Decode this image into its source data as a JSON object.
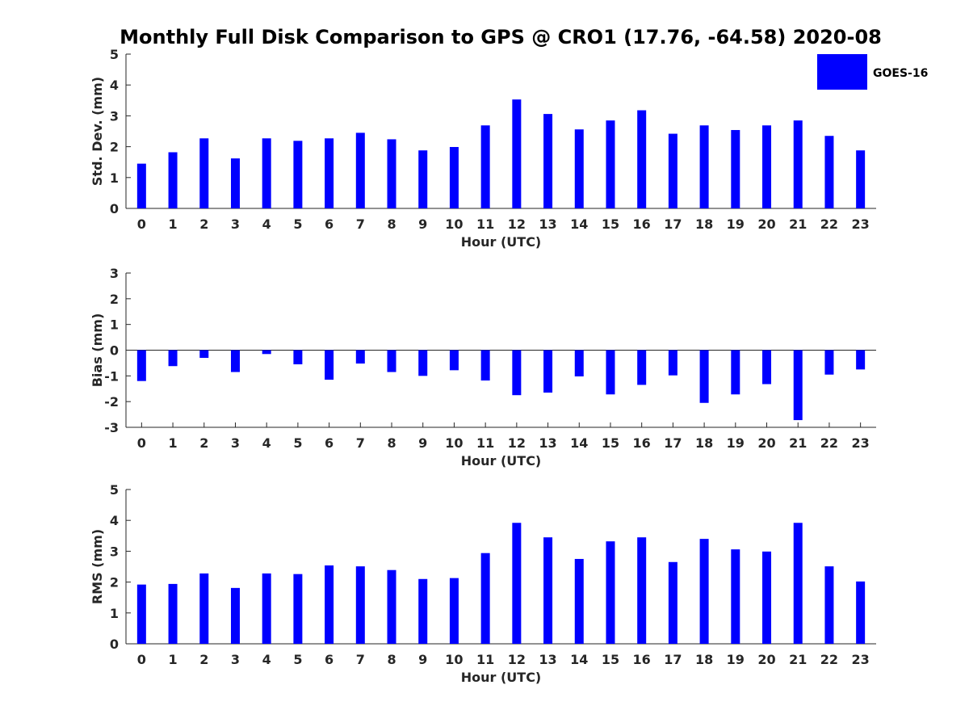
{
  "title": "Monthly Full Disk Comparison to GPS @ CRO1 (17.76, -64.58) 2020-08",
  "legend": {
    "label": "GOES-16",
    "color": "#0000ff",
    "position": "top-right"
  },
  "chart_data": [
    {
      "type": "bar",
      "id": "stddev",
      "xlabel": "Hour (UTC)",
      "ylabel": "Std. Dev. (mm)",
      "ylim": [
        0,
        5
      ],
      "yticks": [
        0,
        1,
        2,
        3,
        4,
        5
      ],
      "categories": [
        "0",
        "1",
        "2",
        "3",
        "4",
        "5",
        "6",
        "7",
        "8",
        "9",
        "10",
        "11",
        "12",
        "13",
        "14",
        "15",
        "16",
        "17",
        "18",
        "19",
        "20",
        "21",
        "22",
        "23"
      ],
      "series": [
        {
          "name": "GOES-16",
          "color": "#0000ff",
          "values": [
            1.45,
            1.82,
            2.27,
            1.62,
            2.27,
            2.19,
            2.27,
            2.45,
            2.24,
            1.88,
            1.99,
            2.69,
            3.53,
            3.06,
            2.56,
            2.85,
            3.18,
            2.42,
            2.69,
            2.54,
            2.69,
            2.85,
            2.35,
            1.88
          ]
        }
      ],
      "grid": false
    },
    {
      "type": "bar",
      "id": "bias",
      "xlabel": "Hour (UTC)",
      "ylabel": "Bias (mm)",
      "ylim": [
        -3,
        3
      ],
      "yticks": [
        -3,
        -2,
        -1,
        0,
        1,
        2,
        3
      ],
      "categories": [
        "0",
        "1",
        "2",
        "3",
        "4",
        "5",
        "6",
        "7",
        "8",
        "9",
        "10",
        "11",
        "12",
        "13",
        "14",
        "15",
        "16",
        "17",
        "18",
        "19",
        "20",
        "21",
        "22",
        "23"
      ],
      "series": [
        {
          "name": "GOES-16",
          "color": "#0000ff",
          "values": [
            -1.2,
            -0.62,
            -0.3,
            -0.85,
            -0.15,
            -0.55,
            -1.15,
            -0.52,
            -0.85,
            -1.0,
            -0.78,
            -1.18,
            -1.75,
            -1.65,
            -1.02,
            -1.72,
            -1.35,
            -0.98,
            -2.05,
            -1.72,
            -1.32,
            -2.72,
            -0.95,
            -0.75
          ]
        }
      ],
      "grid": false
    },
    {
      "type": "bar",
      "id": "rms",
      "xlabel": "Hour (UTC)",
      "ylabel": "RMS (mm)",
      "ylim": [
        0,
        5
      ],
      "yticks": [
        0,
        1,
        2,
        3,
        4,
        5
      ],
      "categories": [
        "0",
        "1",
        "2",
        "3",
        "4",
        "5",
        "6",
        "7",
        "8",
        "9",
        "10",
        "11",
        "12",
        "13",
        "14",
        "15",
        "16",
        "17",
        "18",
        "19",
        "20",
        "21",
        "22",
        "23"
      ],
      "series": [
        {
          "name": "GOES-16",
          "color": "#0000ff",
          "values": [
            1.92,
            1.94,
            2.28,
            1.81,
            2.28,
            2.26,
            2.54,
            2.51,
            2.39,
            2.1,
            2.13,
            2.94,
            3.92,
            3.45,
            2.75,
            3.32,
            3.45,
            2.65,
            3.4,
            3.06,
            2.99,
            3.92,
            2.51,
            2.02
          ]
        }
      ],
      "grid": false
    }
  ]
}
